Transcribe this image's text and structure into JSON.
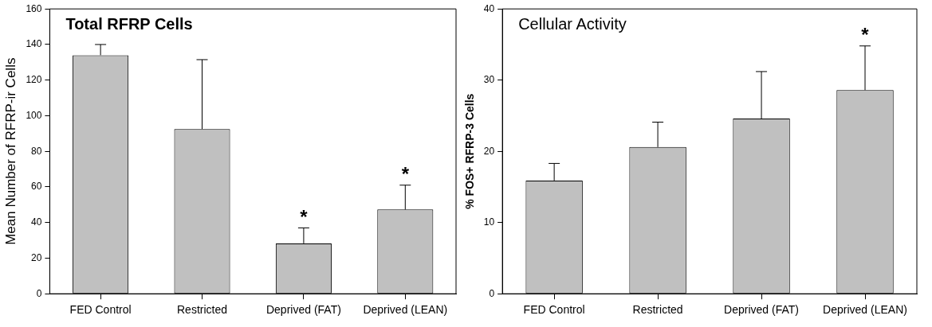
{
  "chart_data": [
    {
      "type": "bar",
      "title": "Total RFRP Cells",
      "ylabel": "Mean Number of RFRP-ir Cells",
      "categories": [
        "FED Control",
        "Restricted",
        "Deprived (FAT)",
        "Deprived (LEAN)"
      ],
      "values": [
        134,
        92.5,
        28.3,
        47.3
      ],
      "errors": [
        [
          134,
          140
        ],
        [
          92.5,
          131.5
        ],
        [
          28.3,
          37
        ],
        [
          47.3,
          61
        ]
      ],
      "color": "#c0c0c0",
      "ylim": [
        0,
        160
      ],
      "yticks": [
        0,
        20,
        40,
        60,
        80,
        100,
        120,
        140,
        160
      ],
      "grid": false,
      "legend": false,
      "annotations": [
        {
          "text": "*",
          "x": "Deprived (FAT)",
          "y": 37
        },
        {
          "text": "*",
          "x": "Deprived (LEAN)",
          "y": 61
        }
      ]
    },
    {
      "type": "bar",
      "title": "Cellular Activity",
      "ylabel": "% FOS+ RFRP-3 Cells",
      "categories": [
        "FED Control",
        "Restricted",
        "Deprived (FAT)",
        "Deprived (LEAN)"
      ],
      "values": [
        15.9,
        20.6,
        24.6,
        28.6
      ],
      "errors": [
        [
          15.9,
          18.3
        ],
        [
          20.6,
          24.1
        ],
        [
          24.6,
          31.2
        ],
        [
          28.6,
          34.8
        ]
      ],
      "color": "#c0c0c0",
      "ylim": [
        0,
        40
      ],
      "yticks": [
        0,
        10,
        20,
        30,
        40
      ],
      "grid": false,
      "legend": false,
      "annotations": [
        {
          "text": "*",
          "x": "Deprived (LEAN)",
          "y": 34.8
        }
      ]
    }
  ]
}
